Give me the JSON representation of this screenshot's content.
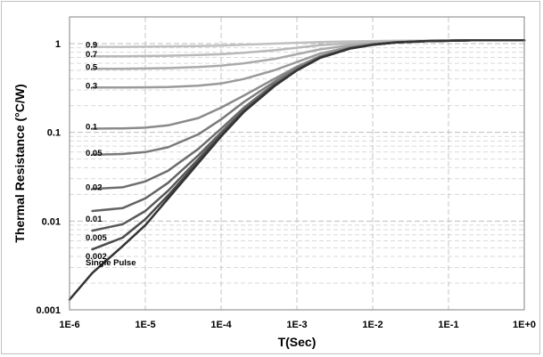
{
  "chart_data": {
    "type": "line",
    "xlabel": "T(Sec)",
    "ylabel": "Thermal Resistance (°C/W)",
    "x_scale": "log",
    "y_scale": "log",
    "xlim": [
      1e-06,
      1
    ],
    "ylim": [
      0.001,
      2
    ],
    "x_ticks": [
      "1E-6",
      "1E-5",
      "1E-4",
      "1E-3",
      "1E-2",
      "1E-1",
      "1E+0"
    ],
    "y_ticks": [
      "0.001",
      "0.01",
      "0.1",
      "1"
    ],
    "grid": true,
    "legend": "none",
    "x": [
      1e-06,
      2e-06,
      5e-06,
      1e-05,
      2e-05,
      5e-05,
      0.0001,
      0.0002,
      0.0005,
      0.001,
      0.002,
      0.005,
      0.01,
      0.02,
      0.05,
      0.1,
      0.2,
      0.5,
      1
    ],
    "series": [
      {
        "name": "0.9",
        "color": "#c0c0c0",
        "values": [
          null,
          0.92,
          0.92,
          0.925,
          0.93,
          0.94,
          0.95,
          0.97,
          1.0,
          1.02,
          1.04,
          1.06,
          1.07,
          1.08,
          1.085,
          1.09,
          1.09,
          1.09,
          1.09
        ]
      },
      {
        "name": "0.7",
        "color": "#b8b8b8",
        "values": [
          null,
          0.72,
          0.72,
          0.725,
          0.73,
          0.745,
          0.76,
          0.79,
          0.84,
          0.9,
          0.96,
          1.01,
          1.04,
          1.06,
          1.075,
          1.085,
          1.09,
          1.09,
          1.09
        ]
      },
      {
        "name": "0.5",
        "color": "#aaaaaa",
        "values": [
          null,
          0.52,
          0.52,
          0.525,
          0.53,
          0.545,
          0.565,
          0.6,
          0.67,
          0.76,
          0.86,
          0.96,
          1.01,
          1.045,
          1.07,
          1.08,
          1.09,
          1.09,
          1.09
        ]
      },
      {
        "name": "0.3",
        "color": "#9a9a9a",
        "values": [
          null,
          0.32,
          0.32,
          0.322,
          0.325,
          0.335,
          0.355,
          0.4,
          0.5,
          0.62,
          0.77,
          0.92,
          0.99,
          1.04,
          1.07,
          1.08,
          1.09,
          1.09,
          1.09
        ]
      },
      {
        "name": "0.1",
        "color": "#8a8a8a",
        "values": [
          null,
          0.11,
          0.111,
          0.113,
          0.12,
          0.145,
          0.19,
          0.26,
          0.4,
          0.55,
          0.72,
          0.9,
          0.98,
          1.035,
          1.065,
          1.08,
          1.09,
          1.09,
          1.09
        ]
      },
      {
        "name": "0.05",
        "color": "#7a7a7a",
        "values": [
          null,
          0.056,
          0.057,
          0.06,
          0.068,
          0.095,
          0.14,
          0.22,
          0.37,
          0.53,
          0.71,
          0.89,
          0.975,
          1.03,
          1.065,
          1.08,
          1.09,
          1.09,
          1.09
        ]
      },
      {
        "name": "0.02",
        "color": "#6e6e6e",
        "values": [
          null,
          0.023,
          0.024,
          0.028,
          0.037,
          0.065,
          0.11,
          0.19,
          0.35,
          0.51,
          0.7,
          0.885,
          0.97,
          1.03,
          1.065,
          1.08,
          1.09,
          1.09,
          1.09
        ]
      },
      {
        "name": "0.01",
        "color": "#636363",
        "values": [
          null,
          0.013,
          0.014,
          0.018,
          0.027,
          0.055,
          0.1,
          0.18,
          0.34,
          0.5,
          0.69,
          0.88,
          0.97,
          1.03,
          1.065,
          1.08,
          1.09,
          1.09,
          1.09
        ]
      },
      {
        "name": "0.005",
        "color": "#585858",
        "values": [
          null,
          0.0078,
          0.0092,
          0.013,
          0.022,
          0.05,
          0.095,
          0.175,
          0.335,
          0.5,
          0.69,
          0.88,
          0.97,
          1.03,
          1.065,
          1.08,
          1.09,
          1.09,
          1.09
        ]
      },
      {
        "name": "0.002",
        "color": "#4a4a4a",
        "values": [
          null,
          0.0048,
          0.0065,
          0.0105,
          0.0195,
          0.047,
          0.092,
          0.172,
          0.333,
          0.5,
          0.69,
          0.88,
          0.97,
          1.03,
          1.065,
          1.08,
          1.09,
          1.09,
          1.09
        ]
      },
      {
        "name": "Single Pulse",
        "color": "#333333",
        "values": [
          0.0013,
          0.0026,
          0.0052,
          0.009,
          0.018,
          0.045,
          0.09,
          0.17,
          0.33,
          0.5,
          0.69,
          0.88,
          0.97,
          1.03,
          1.065,
          1.08,
          1.09,
          1.09,
          1.09
        ]
      }
    ]
  }
}
